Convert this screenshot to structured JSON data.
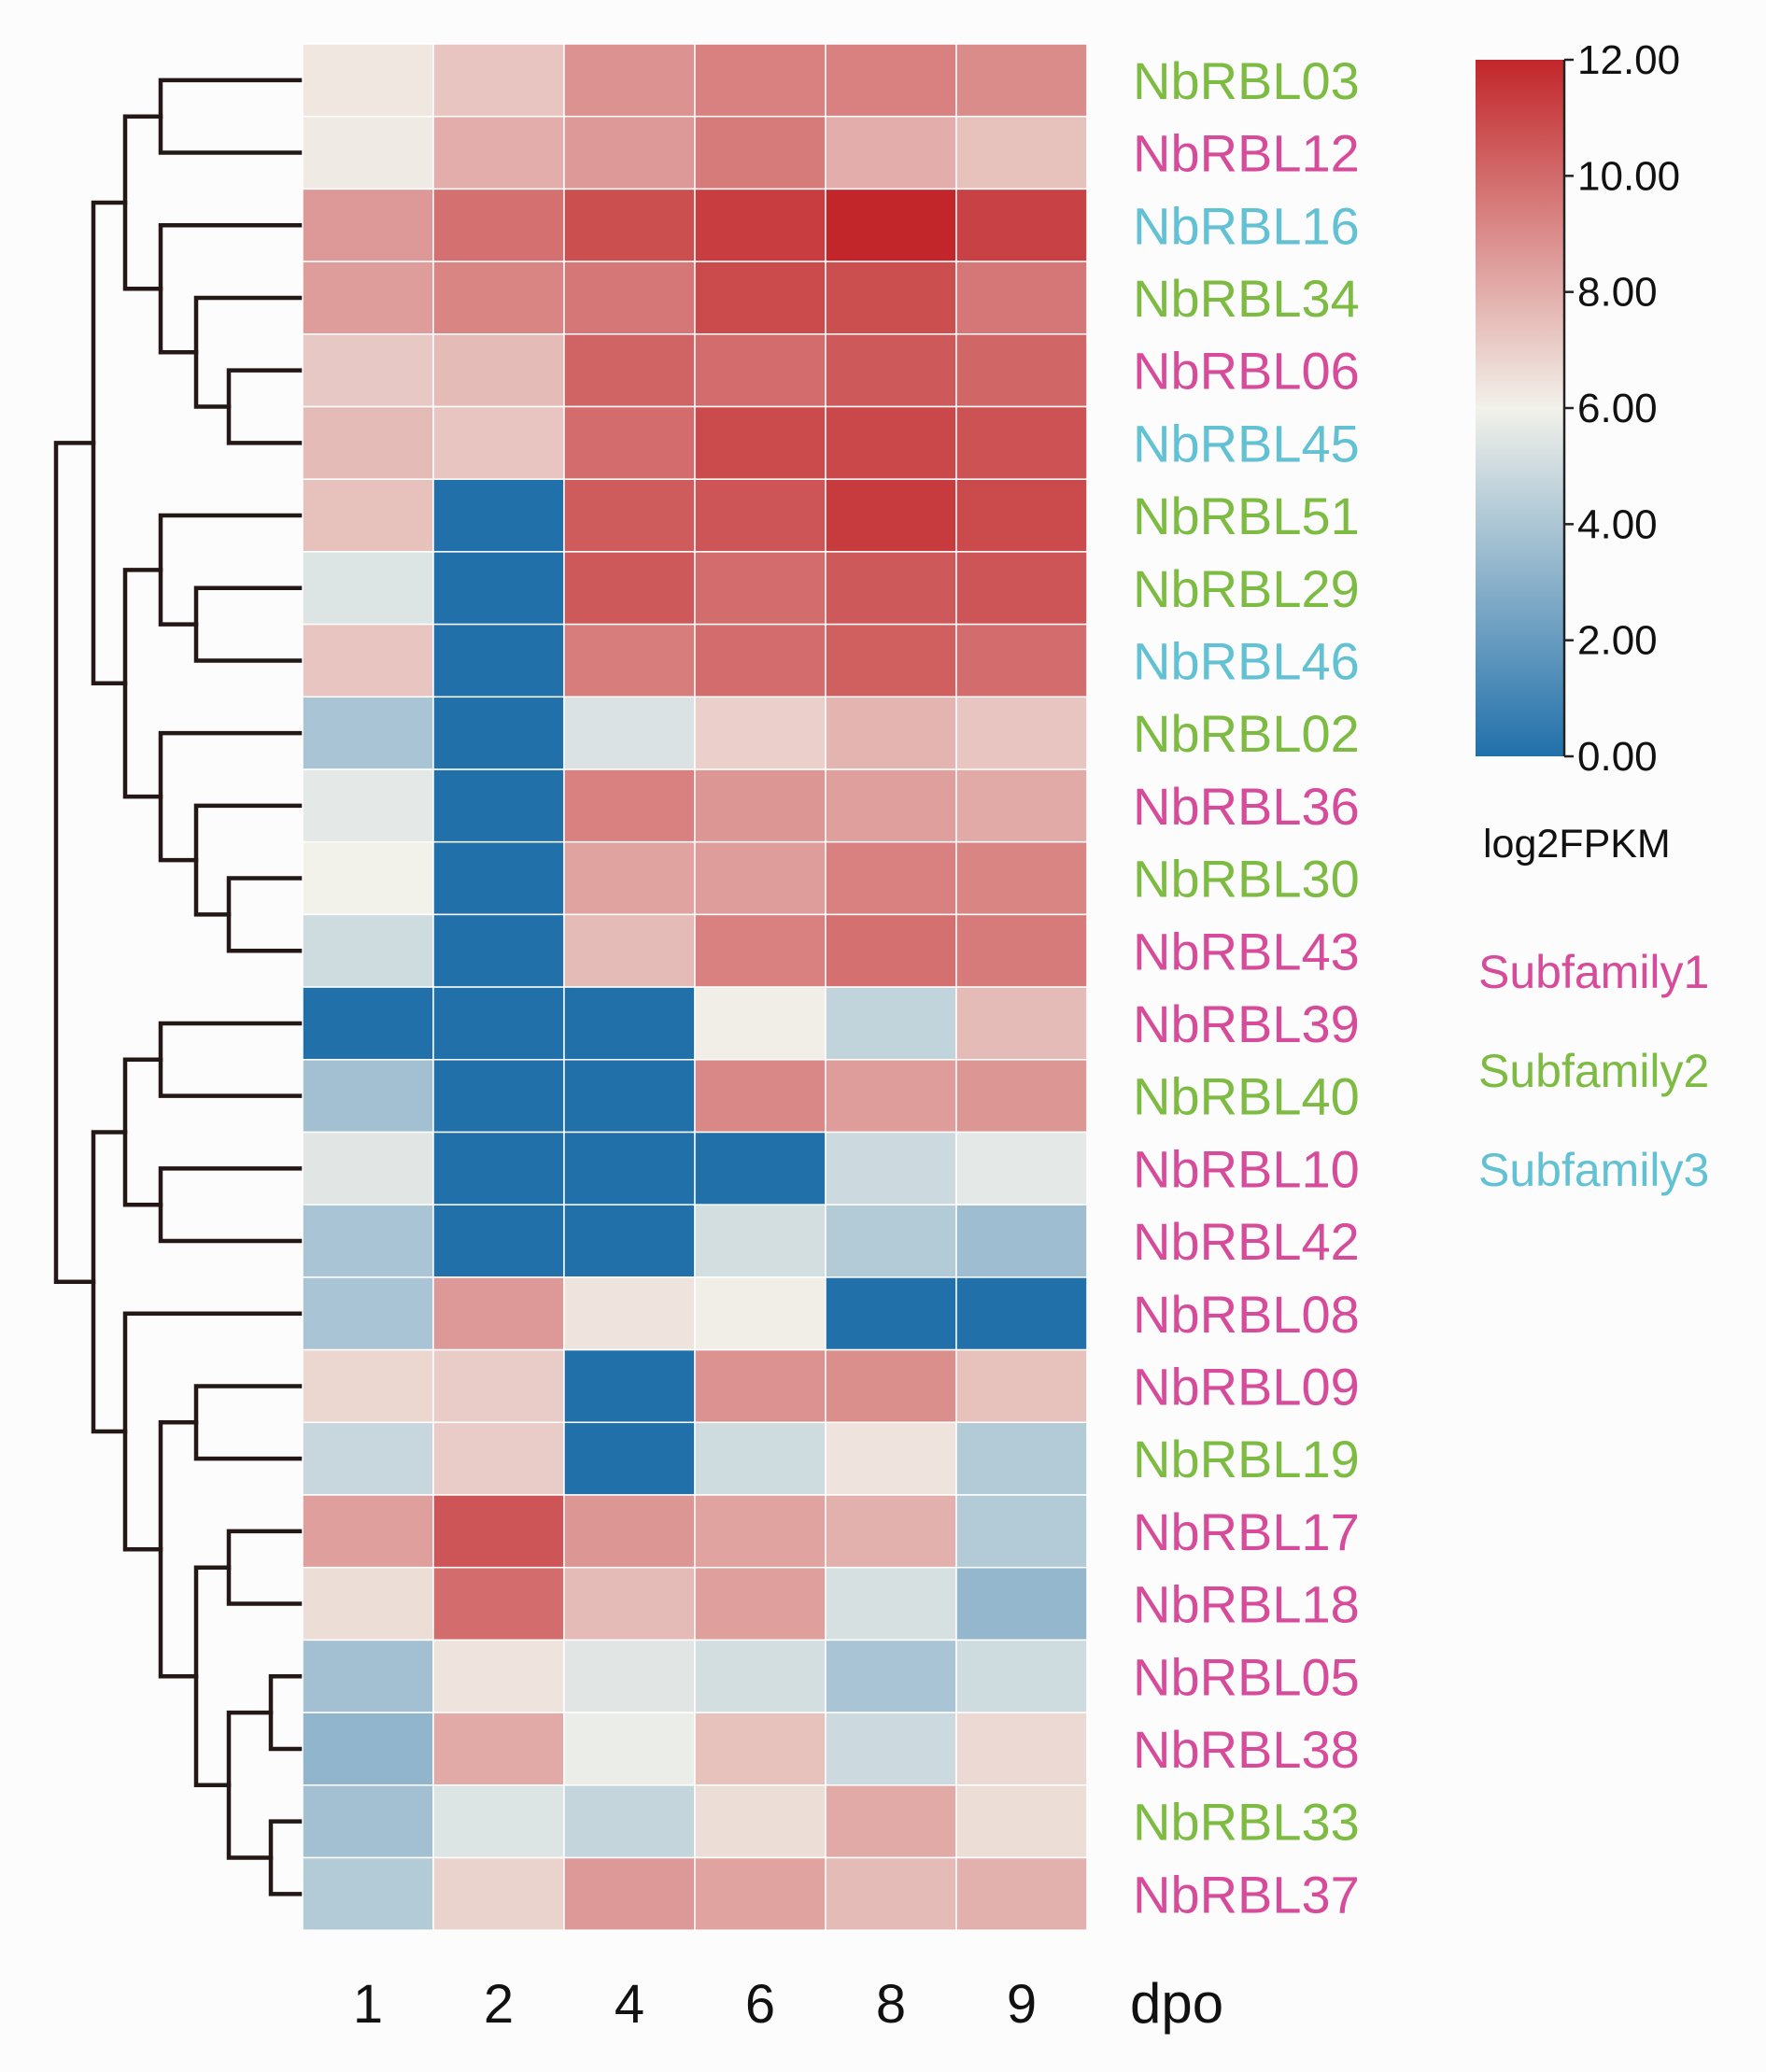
{
  "chart_data": {
    "type": "heatmap",
    "title": "",
    "xlabel": "dpo",
    "ylabel": "",
    "x": [
      "1",
      "2",
      "4",
      "6",
      "8",
      "9"
    ],
    "rows": [
      {
        "gene": "NbRBL03",
        "subfamily": 2,
        "values": [
          6.3,
          7.3,
          8.8,
          9.3,
          9.3,
          9.0
        ]
      },
      {
        "gene": "NbRBL12",
        "subfamily": 1,
        "values": [
          6.2,
          8.0,
          8.6,
          9.5,
          8.0,
          7.4
        ]
      },
      {
        "gene": "NbRBL16",
        "subfamily": 3,
        "values": [
          8.6,
          9.8,
          10.8,
          11.3,
          12.0,
          11.2
        ]
      },
      {
        "gene": "NbRBL34",
        "subfamily": 2,
        "values": [
          8.5,
          9.2,
          9.6,
          10.9,
          10.8,
          9.6
        ]
      },
      {
        "gene": "NbRBL06",
        "subfamily": 1,
        "values": [
          7.2,
          7.6,
          10.2,
          9.9,
          10.5,
          10.1
        ]
      },
      {
        "gene": "NbRBL45",
        "subfamily": 3,
        "values": [
          7.6,
          7.3,
          9.9,
          10.9,
          11.0,
          10.7
        ]
      },
      {
        "gene": "NbRBL51",
        "subfamily": 2,
        "values": [
          7.4,
          0.0,
          10.4,
          10.6,
          11.4,
          10.9
        ]
      },
      {
        "gene": "NbRBL29",
        "subfamily": 2,
        "values": [
          5.4,
          0.0,
          10.5,
          9.9,
          10.5,
          10.6
        ]
      },
      {
        "gene": "NbRBL46",
        "subfamily": 3,
        "values": [
          7.3,
          0.0,
          9.4,
          9.9,
          10.3,
          9.9
        ]
      },
      {
        "gene": "NbRBL02",
        "subfamily": 2,
        "values": [
          3.9,
          0.0,
          5.3,
          7.0,
          7.8,
          7.3
        ]
      },
      {
        "gene": "NbRBL36",
        "subfamily": 1,
        "values": [
          5.6,
          0.0,
          9.3,
          8.7,
          8.4,
          8.1
        ]
      },
      {
        "gene": "NbRBL30",
        "subfamily": 2,
        "values": [
          6.0,
          0.0,
          8.3,
          8.5,
          9.3,
          9.2
        ]
      },
      {
        "gene": "NbRBL43",
        "subfamily": 1,
        "values": [
          5.0,
          0.0,
          7.6,
          9.3,
          9.8,
          9.5
        ]
      },
      {
        "gene": "NbRBL39",
        "subfamily": 1,
        "values": [
          0.0,
          0.0,
          0.0,
          6.1,
          4.6,
          7.6
        ]
      },
      {
        "gene": "NbRBL40",
        "subfamily": 2,
        "values": [
          3.7,
          0.0,
          0.0,
          9.1,
          8.5,
          8.7
        ]
      },
      {
        "gene": "NbRBL10",
        "subfamily": 1,
        "values": [
          5.5,
          0.0,
          0.0,
          0.0,
          4.9,
          5.6
        ]
      },
      {
        "gene": "NbRBL42",
        "subfamily": 1,
        "values": [
          3.9,
          0.0,
          0.0,
          5.1,
          4.2,
          3.6
        ]
      },
      {
        "gene": "NbRBL08",
        "subfamily": 1,
        "values": [
          3.9,
          8.6,
          6.4,
          6.1,
          0.0,
          0.0
        ]
      },
      {
        "gene": "NbRBL09",
        "subfamily": 1,
        "values": [
          6.8,
          7.1,
          0.0,
          8.8,
          8.9,
          7.4
        ]
      },
      {
        "gene": "NbRBL19",
        "subfamily": 2,
        "values": [
          4.8,
          7.1,
          0.0,
          5.0,
          6.4,
          4.2
        ]
      },
      {
        "gene": "NbRBL17",
        "subfamily": 1,
        "values": [
          8.4,
          10.6,
          8.7,
          8.3,
          7.9,
          4.2
        ]
      },
      {
        "gene": "NbRBL18",
        "subfamily": 1,
        "values": [
          6.6,
          9.9,
          7.6,
          8.4,
          5.2,
          3.3
        ]
      },
      {
        "gene": "NbRBL05",
        "subfamily": 1,
        "values": [
          3.7,
          6.4,
          5.5,
          5.1,
          3.9,
          5.0
        ]
      },
      {
        "gene": "NbRBL38",
        "subfamily": 1,
        "values": [
          3.2,
          8.1,
          5.8,
          7.4,
          4.9,
          6.7
        ]
      },
      {
        "gene": "NbRBL33",
        "subfamily": 2,
        "values": [
          3.7,
          5.4,
          4.7,
          6.6,
          8.1,
          6.6
        ]
      },
      {
        "gene": "NbRBL37",
        "subfamily": 1,
        "values": [
          4.2,
          6.9,
          8.6,
          8.3,
          7.6,
          7.9
        ]
      }
    ],
    "colorbar": {
      "label": "log2FPKM",
      "min": 0,
      "max": 12,
      "ticks": [
        "0.00",
        "2.00",
        "4.00",
        "6.00",
        "8.00",
        "10.00",
        "12.00"
      ],
      "colors": {
        "low": "#2170aa",
        "mid": "#f2f1ea",
        "high": "#c2262a"
      }
    },
    "legend": [
      {
        "label": "Subfamily1",
        "color": "#d64b9a"
      },
      {
        "label": "Subfamily2",
        "color": "#7dbb43"
      },
      {
        "label": "Subfamily3",
        "color": "#63c1d4"
      }
    ]
  }
}
